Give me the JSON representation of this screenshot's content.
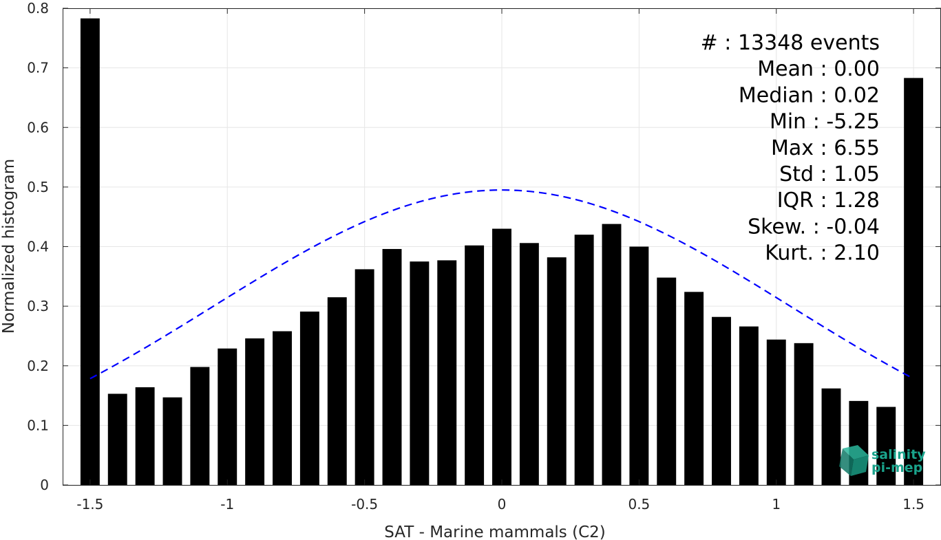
{
  "chart_data": {
    "type": "bar",
    "xlabel": "SAT - Marine mammals (C2)",
    "ylabel": "Normalized histogram",
    "xlim": [
      -1.6,
      1.6
    ],
    "ylim": [
      0,
      0.8
    ],
    "x_ticks": [
      -1.5,
      -1,
      -0.5,
      0,
      0.5,
      1,
      1.5
    ],
    "x_tick_labels": [
      "-1.5",
      "-1",
      "-0.5",
      "0",
      "0.5",
      "1",
      "1.5"
    ],
    "y_ticks": [
      0,
      0.1,
      0.2,
      0.3,
      0.4,
      0.5,
      0.6,
      0.7,
      0.8
    ],
    "y_tick_labels": [
      "0",
      "0.1",
      "0.2",
      "0.3",
      "0.4",
      "0.5",
      "0.6",
      "0.7",
      "0.8"
    ],
    "grid": true,
    "bar_color": "#000000",
    "bin_centers": [
      -1.5,
      -1.4,
      -1.3,
      -1.2,
      -1.1,
      -1.0,
      -0.9,
      -0.8,
      -0.7,
      -0.6,
      -0.5,
      -0.4,
      -0.3,
      -0.2,
      -0.1,
      0.0,
      0.1,
      0.2,
      0.3,
      0.4,
      0.5,
      0.6,
      0.7,
      0.8,
      0.9,
      1.0,
      1.1,
      1.2,
      1.3,
      1.4,
      1.5
    ],
    "values": [
      0.783,
      0.153,
      0.164,
      0.147,
      0.198,
      0.229,
      0.246,
      0.258,
      0.291,
      0.315,
      0.362,
      0.396,
      0.375,
      0.377,
      0.402,
      0.43,
      0.406,
      0.382,
      0.42,
      0.438,
      0.4,
      0.348,
      0.324,
      0.282,
      0.266,
      0.244,
      0.238,
      0.162,
      0.141,
      0.131,
      0.683
    ],
    "fit_curve": {
      "style": "dashed",
      "color": "#0000ff",
      "mean": 0.0,
      "std": 1.05,
      "peak": 0.495,
      "x_range": [
        -1.5,
        1.5
      ]
    },
    "stats": [
      {
        "label": "#  ",
        "value": "13348 events"
      },
      {
        "label": "Mean",
        "value": "0.00"
      },
      {
        "label": "Median",
        "value": "0.02"
      },
      {
        "label": "Min",
        "value": "-5.25"
      },
      {
        "label": "Max",
        "value": "6.55"
      },
      {
        "label": "Std",
        "value": "1.05"
      },
      {
        "label": "IQR",
        "value": "1.28"
      },
      {
        "label": "Skew.",
        "value": "-0.04"
      },
      {
        "label": "Kurt.",
        "value": "2.10"
      }
    ]
  },
  "logo": {
    "line1": "salinity",
    "line2": "pi-mep",
    "color": "#1aa38c"
  }
}
